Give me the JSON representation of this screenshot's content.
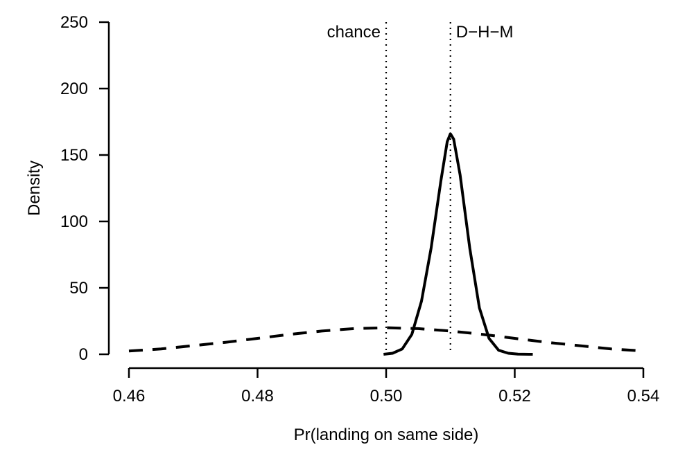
{
  "chart_data": {
    "type": "line",
    "xlabel": "Pr(landing on same side)",
    "ylabel": "Density",
    "xlim": [
      0.46,
      0.54
    ],
    "ylim": [
      0,
      250
    ],
    "x_ticks": [
      "0.46",
      "0.48",
      "0.50",
      "0.52",
      "0.54"
    ],
    "x_tick_values": [
      0.46,
      0.48,
      0.5,
      0.52,
      0.54
    ],
    "y_ticks": [
      "0",
      "50",
      "100",
      "150",
      "200",
      "250"
    ],
    "y_tick_values": [
      0,
      50,
      100,
      150,
      200,
      250
    ],
    "grid": false,
    "series": [
      {
        "style": "solid",
        "points": [
          [
            0.4996,
            0
          ],
          [
            0.501,
            0.8
          ],
          [
            0.5025,
            4
          ],
          [
            0.504,
            15
          ],
          [
            0.5055,
            40
          ],
          [
            0.507,
            80
          ],
          [
            0.5085,
            130
          ],
          [
            0.5095,
            160
          ],
          [
            0.51,
            166
          ],
          [
            0.5105,
            162
          ],
          [
            0.5115,
            135
          ],
          [
            0.513,
            80
          ],
          [
            0.5145,
            35
          ],
          [
            0.516,
            12
          ],
          [
            0.5175,
            3
          ],
          [
            0.519,
            0.8
          ],
          [
            0.5205,
            0.1
          ],
          [
            0.5228,
            0
          ]
        ]
      },
      {
        "style": "dashed",
        "points": [
          [
            0.46,
            2.5
          ],
          [
            0.465,
            4
          ],
          [
            0.47,
            6.5
          ],
          [
            0.475,
            9
          ],
          [
            0.48,
            12
          ],
          [
            0.485,
            15
          ],
          [
            0.49,
            17.5
          ],
          [
            0.495,
            19.3
          ],
          [
            0.5,
            20
          ],
          [
            0.505,
            19.3
          ],
          [
            0.51,
            17.5
          ],
          [
            0.515,
            15
          ],
          [
            0.52,
            12
          ],
          [
            0.525,
            9
          ],
          [
            0.53,
            6.5
          ],
          [
            0.535,
            4
          ],
          [
            0.54,
            2.5
          ]
        ]
      }
    ],
    "reference_lines": [
      {
        "x": 0.5,
        "label": "chance",
        "label_side": "left"
      },
      {
        "x": 0.51,
        "label": "D−H−M",
        "label_side": "right"
      }
    ]
  }
}
